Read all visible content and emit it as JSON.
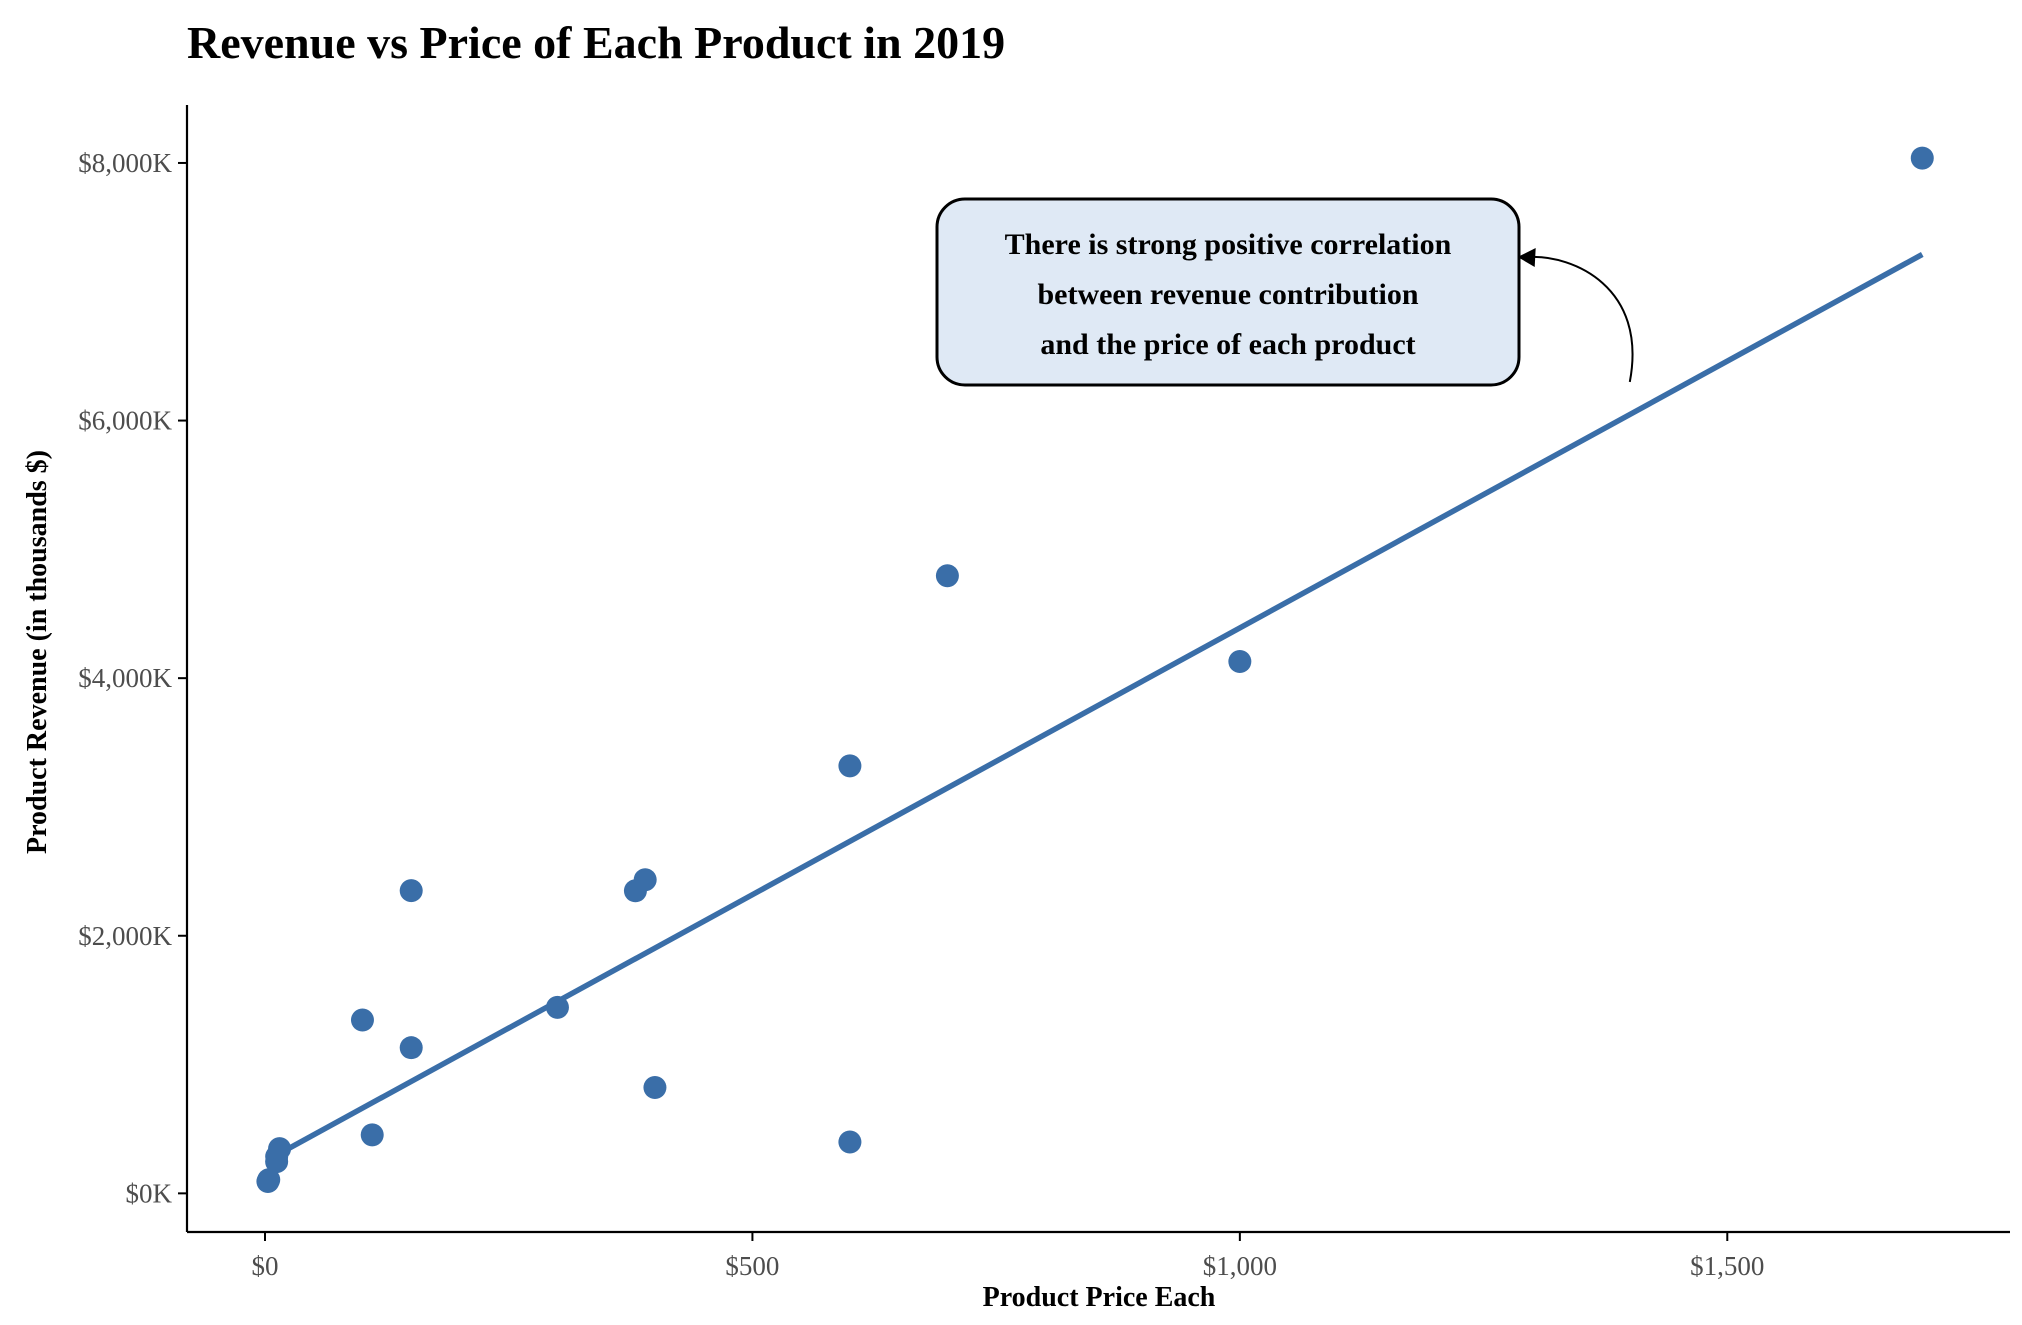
{
  "chart_data": {
    "type": "scatter",
    "title": "Revenue vs Price of Each Product in 2019",
    "xlabel": "Product Price Each",
    "ylabel": "Product Revenue (in thousands $)",
    "xlim": [
      -80,
      1790
    ],
    "ylim": [
      -300,
      8450
    ],
    "xticks": [
      {
        "value": 0,
        "label": "$0"
      },
      {
        "value": 500,
        "label": "$500"
      },
      {
        "value": 1000,
        "label": "$1,000"
      },
      {
        "value": 1500,
        "label": "$1,500"
      }
    ],
    "yticks": [
      {
        "value": 0,
        "label": "$0K"
      },
      {
        "value": 2000,
        "label": "$2,000K"
      },
      {
        "value": 4000,
        "label": "$4,000K"
      },
      {
        "value": 6000,
        "label": "$6,000K"
      },
      {
        "value": 8000,
        "label": "$8,000K"
      }
    ],
    "series": [
      {
        "points": [
          {
            "x": 2.99,
            "y": 92
          },
          {
            "x": 3.84,
            "y": 106
          },
          {
            "x": 11.95,
            "y": 246
          },
          {
            "x": 11.99,
            "y": 286
          },
          {
            "x": 14.95,
            "y": 347
          },
          {
            "x": 99.99,
            "y": 1346
          },
          {
            "x": 109.99,
            "y": 454
          },
          {
            "x": 149.99,
            "y": 2350
          },
          {
            "x": 149.99,
            "y": 1131
          },
          {
            "x": 300,
            "y": 1444
          },
          {
            "x": 379.99,
            "y": 2349
          },
          {
            "x": 389.99,
            "y": 2435
          },
          {
            "x": 400,
            "y": 822
          },
          {
            "x": 600,
            "y": 3319
          },
          {
            "x": 600,
            "y": 399
          },
          {
            "x": 700,
            "y": 4795
          },
          {
            "x": 999.99,
            "y": 4129
          },
          {
            "x": 1700,
            "y": 8038
          }
        ]
      }
    ],
    "trendline": {
      "type": "linear",
      "x": [
        2.99,
        1700
      ],
      "y": [
        260,
        7290
      ]
    },
    "grid": false,
    "legend": "none",
    "annotation": {
      "lines": [
        "There is strong positive correlation",
        "between revenue contribution",
        "and the price of each product"
      ],
      "arrow_from": {
        "x": 1400,
        "y": 6300
      },
      "arrow_to": {
        "x": 1285,
        "y": 7270
      }
    },
    "colors": {
      "points": "#3a6ea8",
      "trendline": "#3a6ea8",
      "annotation_fill": "#dfe9f5",
      "axis": "#000000",
      "tick_label": "#4d4d4d"
    }
  }
}
